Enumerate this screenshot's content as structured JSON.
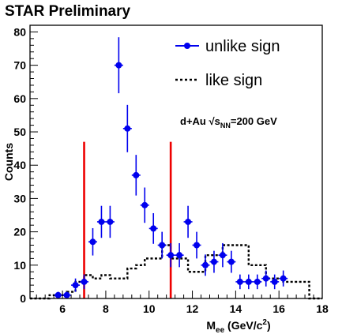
{
  "chart_data": {
    "type": "scatter",
    "title": "STAR Preliminary",
    "xlabel_main": "M",
    "xlabel_sub": "ee",
    "xlabel_unit": " (GeV/c",
    "xlabel_sup": "2",
    "xlabel_close": ")",
    "ylabel": "Counts",
    "xlim": [
      4.5,
      18
    ],
    "ylim": [
      0,
      82
    ],
    "xticks": [
      6,
      8,
      10,
      12,
      14,
      16,
      18
    ],
    "yticks": [
      0,
      10,
      20,
      30,
      40,
      50,
      60,
      70,
      80
    ],
    "annotation": {
      "prefix": "d+Au ",
      "radical": "√",
      "s": "s",
      "sub": "NN",
      "suffix": "=200 GeV"
    },
    "legend": {
      "placement": "top-right",
      "unlike_label": "unlike sign",
      "like_label": "like sign"
    },
    "vlines": [
      7,
      11
    ],
    "colors": {
      "unlike": "#0000ee",
      "like": "#000000",
      "window": "#ee0000"
    },
    "series": [
      {
        "name": "unlike sign",
        "style": "points-with-errors",
        "x": [
          5.8,
          6.2,
          6.6,
          7.0,
          7.4,
          7.8,
          8.2,
          8.6,
          9.0,
          9.4,
          9.8,
          10.2,
          10.6,
          11.0,
          11.4,
          11.8,
          12.2,
          12.6,
          13.0,
          13.4,
          13.8,
          14.2,
          14.6,
          15.0,
          15.4,
          15.8,
          16.2,
          16.6,
          17.0,
          17.4,
          17.8
        ],
        "y": [
          1,
          1,
          4,
          5,
          17,
          23,
          23,
          70,
          51,
          37,
          28,
          21,
          16,
          13,
          13,
          23,
          16,
          10,
          11,
          13,
          11,
          5,
          5,
          5,
          6,
          5,
          6,
          0,
          0,
          0,
          0
        ],
        "err": [
          1,
          1,
          2,
          2.2,
          4.1,
          4.8,
          4.8,
          8.4,
          7.1,
          6.1,
          5.3,
          4.6,
          4,
          3.6,
          3.6,
          4.8,
          4,
          3.2,
          3.3,
          3.6,
          3.3,
          2.2,
          2.2,
          2.2,
          2.4,
          2.2,
          2.4,
          0,
          0,
          0,
          0
        ]
      },
      {
        "name": "like sign",
        "style": "dashed-step",
        "edges": [
          4.5,
          5.4,
          5.8,
          6.2,
          6.6,
          7.0,
          7.4,
          7.8,
          8.2,
          8.6,
          9.0,
          9.4,
          9.8,
          10.2,
          10.6,
          11.0,
          11.4,
          11.8,
          12.2,
          12.6,
          13.0,
          13.4,
          13.8,
          14.2,
          14.6,
          15.0,
          15.4,
          15.8,
          16.2,
          16.6,
          17.0,
          17.4,
          18.0
        ],
        "values": [
          0,
          1,
          1,
          2,
          5,
          7,
          6,
          7,
          6,
          6,
          9,
          10,
          12,
          12,
          16,
          12,
          12,
          8,
          8,
          13,
          13,
          16,
          16,
          16,
          10,
          10,
          6,
          6,
          5,
          5,
          5,
          0
        ]
      }
    ]
  }
}
